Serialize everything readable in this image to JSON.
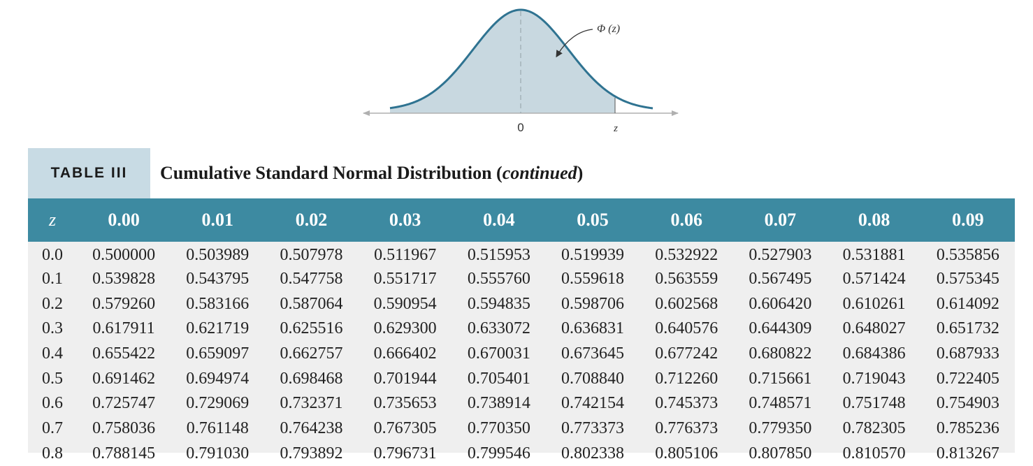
{
  "figure": {
    "curve_label": "Φ (z)",
    "axis_zero_label": "0",
    "axis_z_label": "z",
    "colors": {
      "curve": "#2f7391",
      "fill": "#c8d8e0",
      "axis": "#b0b0b0"
    }
  },
  "caption": {
    "tag": "TABLE III",
    "title_main": "Cumulative Standard Normal Distribution (",
    "title_italic": "continued",
    "title_close": ")"
  },
  "table": {
    "headers": [
      "z",
      "0.00",
      "0.01",
      "0.02",
      "0.03",
      "0.04",
      "0.05",
      "0.06",
      "0.07",
      "0.08",
      "0.09"
    ],
    "rows": [
      [
        "0.0",
        "0.500000",
        "0.503989",
        "0.507978",
        "0.511967",
        "0.515953",
        "0.519939",
        "0.532922",
        "0.527903",
        "0.531881",
        "0.535856"
      ],
      [
        "0.1",
        "0.539828",
        "0.543795",
        "0.547758",
        "0.551717",
        "0.555760",
        "0.559618",
        "0.563559",
        "0.567495",
        "0.571424",
        "0.575345"
      ],
      [
        "0.2",
        "0.579260",
        "0.583166",
        "0.587064",
        "0.590954",
        "0.594835",
        "0.598706",
        "0.602568",
        "0.606420",
        "0.610261",
        "0.614092"
      ],
      [
        "0.3",
        "0.617911",
        "0.621719",
        "0.625516",
        "0.629300",
        "0.633072",
        "0.636831",
        "0.640576",
        "0.644309",
        "0.648027",
        "0.651732"
      ],
      [
        "0.4",
        "0.655422",
        "0.659097",
        "0.662757",
        "0.666402",
        "0.670031",
        "0.673645",
        "0.677242",
        "0.680822",
        "0.684386",
        "0.687933"
      ],
      [
        "0.5",
        "0.691462",
        "0.694974",
        "0.698468",
        "0.701944",
        "0.705401",
        "0.708840",
        "0.712260",
        "0.715661",
        "0.719043",
        "0.722405"
      ],
      [
        "0.6",
        "0.725747",
        "0.729069",
        "0.732371",
        "0.735653",
        "0.738914",
        "0.742154",
        "0.745373",
        "0.748571",
        "0.751748",
        "0.754903"
      ],
      [
        "0.7",
        "0.758036",
        "0.761148",
        "0.764238",
        "0.767305",
        "0.770350",
        "0.773373",
        "0.776373",
        "0.779350",
        "0.782305",
        "0.785236"
      ],
      [
        "0.8",
        "0.788145",
        "0.791030",
        "0.793892",
        "0.796731",
        "0.799546",
        "0.802338",
        "0.805106",
        "0.807850",
        "0.810570",
        "0.813267"
      ]
    ]
  }
}
